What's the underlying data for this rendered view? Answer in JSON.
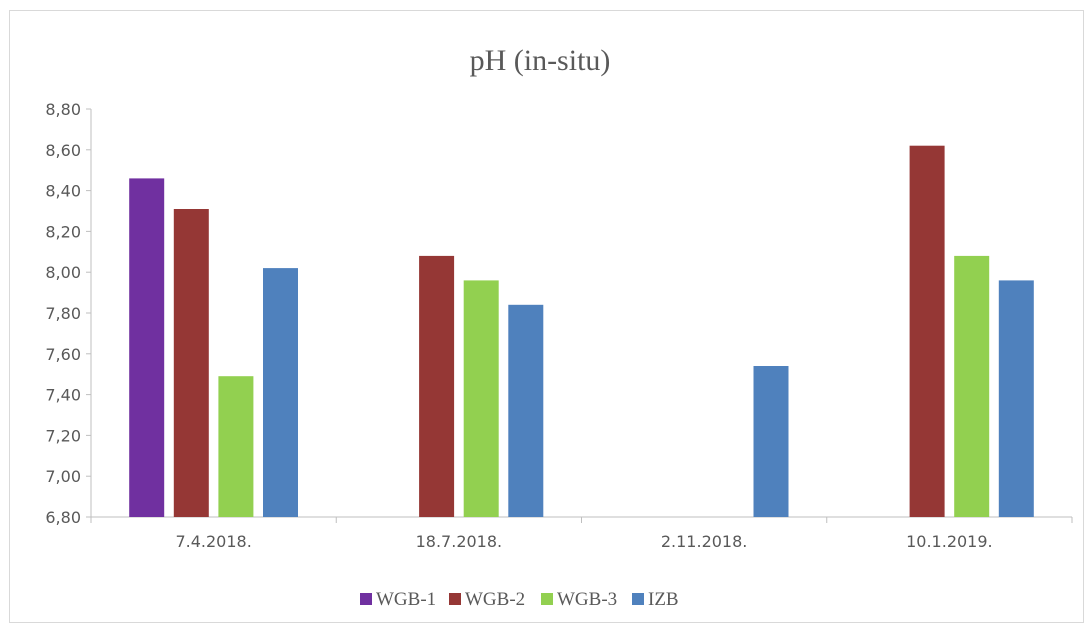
{
  "chart_data": {
    "type": "bar",
    "title": "pH (in-situ)",
    "xlabel": "",
    "ylabel": "",
    "categories": [
      "7.4.2018.",
      "18.7.2018.",
      "2.11.2018.",
      "10.1.2019."
    ],
    "series": [
      {
        "name": "WGB-1",
        "color": "#7030a0",
        "values": [
          8.46,
          null,
          null,
          null
        ]
      },
      {
        "name": "WGB-2",
        "color": "#953735",
        "values": [
          8.31,
          8.08,
          null,
          8.62
        ]
      },
      {
        "name": "WGB-3",
        "color": "#92d050",
        "values": [
          7.49,
          7.96,
          null,
          8.08
        ]
      },
      {
        "name": "IZB",
        "color": "#4f81bd",
        "values": [
          8.02,
          7.84,
          7.54,
          7.96
        ]
      }
    ],
    "ylim": [
      6.8,
      8.8
    ],
    "yticks": [
      "6,80",
      "7,00",
      "7,20",
      "7,40",
      "7,60",
      "7,80",
      "8,00",
      "8,20",
      "8,40",
      "8,60",
      "8,80"
    ],
    "grid": false,
    "legend_position": "bottom"
  }
}
